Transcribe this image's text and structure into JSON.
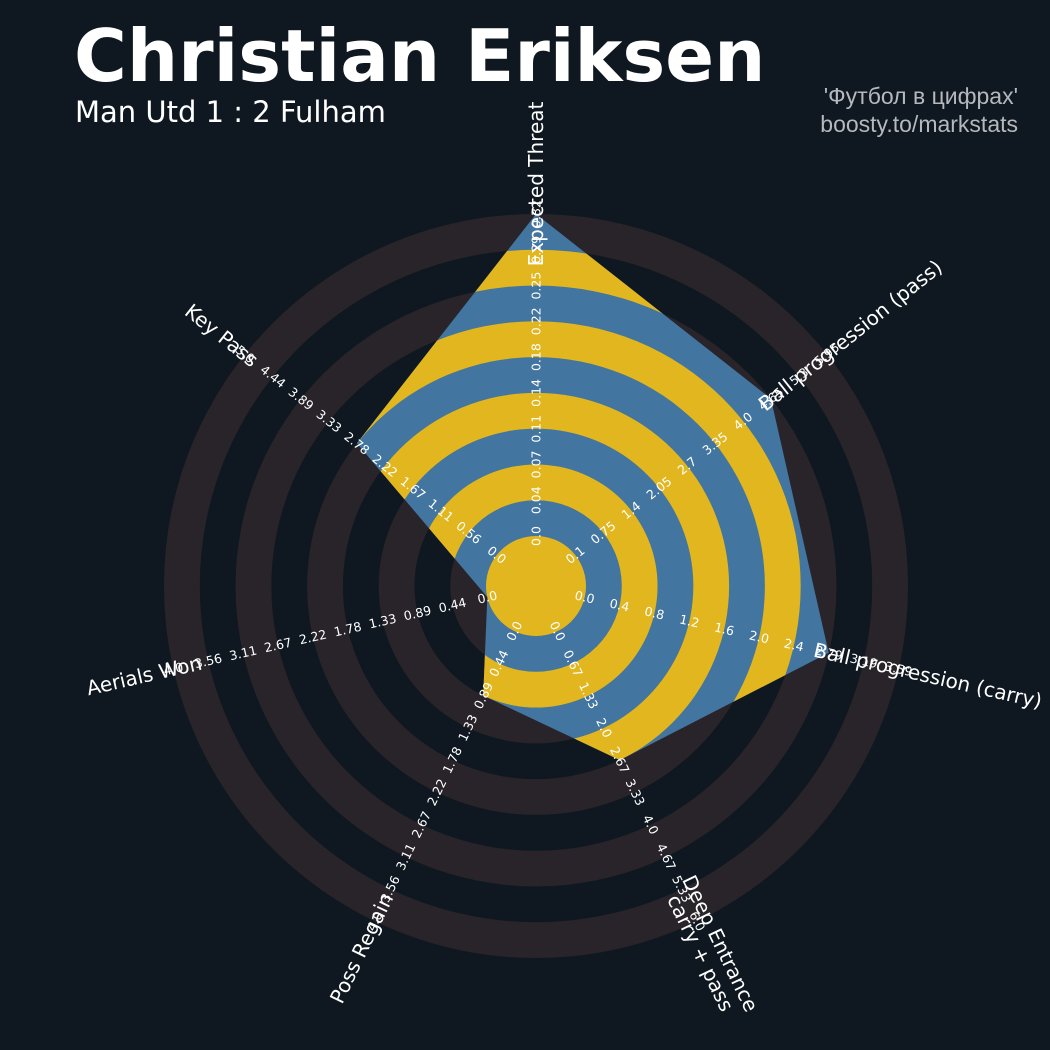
{
  "header": {
    "title": "Christian Eriksen",
    "subtitle": "Man Utd 1 : 2 Fulham",
    "credit_line1": "'Футбол в цифрах'",
    "credit_line2": "boosty.to/markstats"
  },
  "colors": {
    "background": "#0f1820",
    "ring_band": "#29242a",
    "radar_blue": "#4275a0",
    "radar_yellow": "#e2b61e",
    "text": "#ffffff",
    "credit_text": "#b5b9bd"
  },
  "chart_data": {
    "type": "radar",
    "title": "Christian Eriksen",
    "subtitle": "Man Utd 1 : 2 Fulham",
    "params": [
      {
        "name": "Expected Threat",
        "label_lines": [
          "Expected Threat"
        ],
        "ticks": [
          "0.0",
          "0.04",
          "0.07",
          "0.11",
          "0.14",
          "0.18",
          "0.22",
          "0.25",
          "0.29",
          "0.32"
        ],
        "min": 0.0,
        "max": 0.32,
        "value": 0.32
      },
      {
        "name": "Ball progression (pass)",
        "label_lines": [
          "Ball progression (pass)"
        ],
        "ticks": [
          "0.1",
          "0.75",
          "1.4",
          "2.05",
          "2.7",
          "3.35",
          "4.0",
          "4.65",
          "5.3",
          "5.95"
        ],
        "min": 0.1,
        "max": 5.95,
        "value": 4.65
      },
      {
        "name": "Ball progression (carry)",
        "label_lines": [
          "Ball progression (carry)"
        ],
        "ticks": [
          "0.0",
          "0.4",
          "0.8",
          "1.2",
          "1.6",
          "2.0",
          "2.4",
          "2.79",
          "3.19",
          "3.59"
        ],
        "min": 0.0,
        "max": 3.59,
        "value": 2.79
      },
      {
        "name": "Deep Entrance carry + pass",
        "label_lines": [
          "Deep Entrance",
          "carry + pass"
        ],
        "ticks": [
          "0.0",
          "0.67",
          "1.33",
          "2.0",
          "2.67",
          "3.33",
          "4.0",
          "4.67",
          "5.33",
          "6.0"
        ],
        "min": 0.0,
        "max": 6.0,
        "value": 2.67
      },
      {
        "name": "Poss Regain",
        "label_lines": [
          "Poss Regain"
        ],
        "ticks": [
          "0.0",
          "0.44",
          "0.89",
          "1.33",
          "1.78",
          "2.22",
          "2.67",
          "3.11",
          "3.56",
          "4.0"
        ],
        "min": 0.0,
        "max": 4.0,
        "value": 0.89
      },
      {
        "name": "Aerials Won",
        "label_lines": [
          "Aerials Won"
        ],
        "ticks": [
          "0.0",
          "0.44",
          "0.89",
          "1.33",
          "1.78",
          "2.22",
          "2.67",
          "3.11",
          "3.56",
          "4.0"
        ],
        "min": 0.0,
        "max": 4.0,
        "value": 0.0
      },
      {
        "name": "Key Pass",
        "label_lines": [
          "Key Pass"
        ],
        "ticks": [
          "0.0",
          "0.56",
          "1.11",
          "1.67",
          "2.22",
          "2.78",
          "3.33",
          "3.89",
          "4.44",
          "5.0"
        ],
        "min": 0.0,
        "max": 5.0,
        "value": 2.78
      }
    ]
  }
}
